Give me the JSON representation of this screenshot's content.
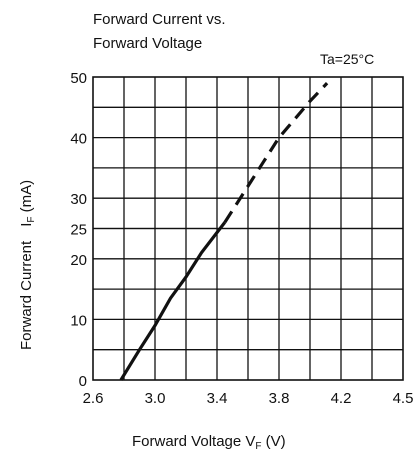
{
  "chart_data": {
    "type": "line",
    "title": [
      "Forward Current vs.",
      "Forward Voltage"
    ],
    "annotation": "Ta=25°C",
    "xlabel": "Forward Voltage  V",
    "xlabel_sub": "F",
    "xlabel_unit": " (V)",
    "ylabel": "Forward Current",
    "ylabel_sym": "I",
    "ylabel_sub": "F",
    "ylabel_unit": " (mA)",
    "xlim": [
      2.6,
      4.5
    ],
    "ylim": [
      0,
      50
    ],
    "grid": true,
    "x_ticks": [
      {
        "value": 2.6,
        "label": "2.6"
      },
      {
        "value": 3.0,
        "label": "3.0"
      },
      {
        "value": 3.4,
        "label": "3.4"
      },
      {
        "value": 3.8,
        "label": "3.8"
      },
      {
        "value": 4.2,
        "label": "4.2"
      },
      {
        "value": 4.5,
        "label": "4.5"
      }
    ],
    "y_ticks": [
      {
        "value": 0,
        "label": "0"
      },
      {
        "value": 10,
        "label": "10"
      },
      {
        "value": 20,
        "label": "20"
      },
      {
        "value": 25,
        "label": "25"
      },
      {
        "value": 30,
        "label": "30"
      },
      {
        "value": 40,
        "label": "40"
      },
      {
        "value": 50,
        "label": "50"
      }
    ],
    "series": [
      {
        "style": "solid",
        "x": [
          2.78,
          2.9,
          3.0,
          3.1,
          3.2,
          3.3,
          3.45
        ],
        "y": [
          0,
          5,
          9,
          13.5,
          17,
          21,
          26
        ]
      },
      {
        "style": "dashed",
        "x": [
          3.45,
          3.6,
          3.7,
          3.8,
          3.9,
          4.0,
          4.11
        ],
        "y": [
          26,
          32,
          36,
          40,
          43,
          46,
          49
        ]
      }
    ]
  }
}
